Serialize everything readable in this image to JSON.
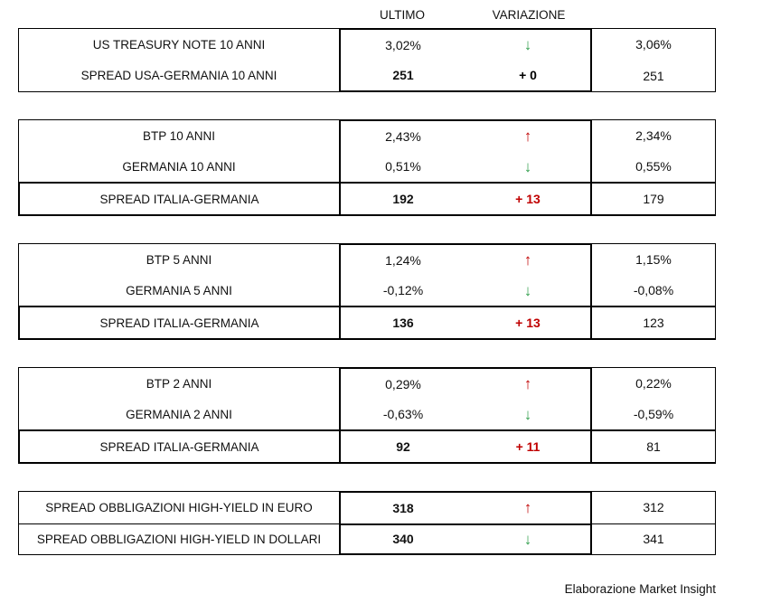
{
  "columns": {
    "ultimo": "ULTIMO",
    "variazione": "VARIAZIONE"
  },
  "credit": "Elaborazione Market Insight",
  "symbols": {
    "up": "↑",
    "down": "↓"
  },
  "colors": {
    "up_arrow": "#C00000",
    "down_arrow": "#34A04F",
    "change_positive": "#C00000",
    "change_neutral": "#000000",
    "border": "#000000",
    "background": "#FFFFFF"
  },
  "blocks": [
    {
      "name": "us-treasury",
      "rows": [
        {
          "label": "US TREASURY NOTE 10 ANNI",
          "ultimo": "3,02%",
          "change": {
            "kind": "arrow",
            "direction": "down"
          },
          "previous": "3,06%"
        },
        {
          "label": "SPREAD USA-GERMANIA 10 ANNI",
          "ultimo": "251",
          "change": {
            "kind": "text",
            "value": "+ 0",
            "tone": "neutral"
          },
          "previous": "251"
        }
      ]
    },
    {
      "name": "10-anni",
      "rows": [
        {
          "label": "BTP 10 ANNI",
          "ultimo": "2,43%",
          "change": {
            "kind": "arrow",
            "direction": "up"
          },
          "previous": "2,34%"
        },
        {
          "label": "GERMANIA 10 ANNI",
          "ultimo": "0,51%",
          "change": {
            "kind": "arrow",
            "direction": "down"
          },
          "previous": "0,55%"
        },
        {
          "label": "SPREAD ITALIA-GERMANIA",
          "ultimo": "192",
          "change": {
            "kind": "text",
            "value": "+ 13",
            "tone": "positive"
          },
          "previous": "179"
        }
      ]
    },
    {
      "name": "5-anni",
      "rows": [
        {
          "label": "BTP 5 ANNI",
          "ultimo": "1,24%",
          "change": {
            "kind": "arrow",
            "direction": "up"
          },
          "previous": "1,15%"
        },
        {
          "label": "GERMANIA 5 ANNI",
          "ultimo": "-0,12%",
          "change": {
            "kind": "arrow",
            "direction": "down"
          },
          "previous": "-0,08%"
        },
        {
          "label": "SPREAD ITALIA-GERMANIA",
          "ultimo": "136",
          "change": {
            "kind": "text",
            "value": "+ 13",
            "tone": "positive"
          },
          "previous": "123"
        }
      ]
    },
    {
      "name": "2-anni",
      "rows": [
        {
          "label": "BTP 2 ANNI",
          "ultimo": "0,29%",
          "change": {
            "kind": "arrow",
            "direction": "up"
          },
          "previous": "0,22%"
        },
        {
          "label": "GERMANIA 2 ANNI",
          "ultimo": "-0,63%",
          "change": {
            "kind": "arrow",
            "direction": "down"
          },
          "previous": "-0,59%"
        },
        {
          "label": "SPREAD ITALIA-GERMANIA",
          "ultimo": "92",
          "change": {
            "kind": "text",
            "value": "+ 11",
            "tone": "positive"
          },
          "previous": "81"
        }
      ]
    },
    {
      "name": "high-yield",
      "rows": [
        {
          "label": "SPREAD OBBLIGAZIONI HIGH-YIELD IN EURO",
          "ultimo": "318",
          "change": {
            "kind": "arrow",
            "direction": "up"
          },
          "previous": "312"
        },
        {
          "label": "SPREAD OBBLIGAZIONI HIGH-YIELD IN DOLLARI",
          "ultimo": "340",
          "change": {
            "kind": "arrow",
            "direction": "down"
          },
          "previous": "341"
        }
      ]
    }
  ]
}
